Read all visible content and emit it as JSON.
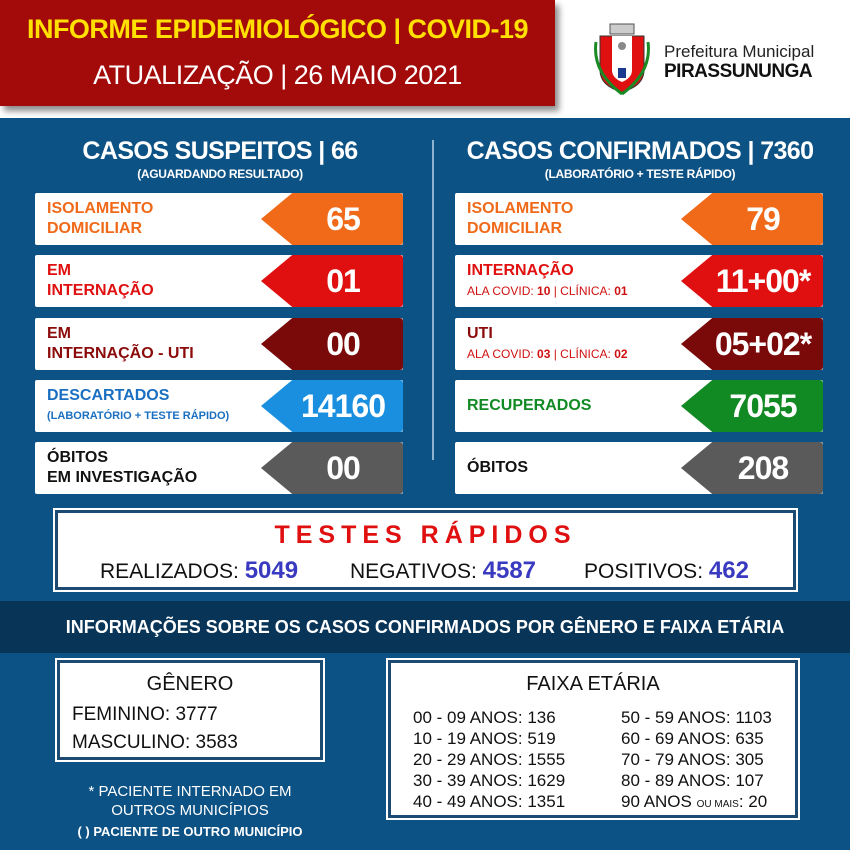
{
  "header": {
    "title": "INFORME  EPIDEMIOLÓGICO | COVID-19",
    "update": "ATUALIZAÇÃO |  26 MAIO 2021",
    "org_line1": "Prefeitura Municipal",
    "org_line2": "PIRASSUNUNGA",
    "logo": "coat-of-arms-icon"
  },
  "suspeitos": {
    "title": "CASOS SUSPEITOS | 66",
    "subtitle": "(AGUARDANDO RESULTADO)",
    "items": [
      {
        "label1": "ISOLAMENTO",
        "label2": "DOMICILIAR",
        "value": "65",
        "color": "#f06a1a",
        "text_color": "#f06a1a"
      },
      {
        "label1": "EM",
        "label2": "INTERNAÇÃO",
        "value": "01",
        "color": "#e01010",
        "text_color": "#e01010"
      },
      {
        "label1": "EM",
        "label2": "INTERNAÇÃO - UTI",
        "value": "00",
        "color": "#7a0a0a",
        "text_color": "#8b0a0a"
      },
      {
        "label1": "DESCARTADOS",
        "label2": "(LABORATÓRIO + TESTE RÁPIDO)",
        "value": "14160",
        "color": "#1a8fe0",
        "text_color": "#1a6fc0"
      },
      {
        "label1": "ÓBITOS",
        "label2": "EM INVESTIGAÇÃO",
        "value": "00",
        "color": "#5a5a5a",
        "text_color": "#111111"
      }
    ]
  },
  "confirmados": {
    "title": "CASOS CONFIRMADOS | 7360",
    "subtitle": "(LABORATÓRIO + TESTE RÁPIDO)",
    "items": [
      {
        "label1": "ISOLAMENTO",
        "label2": "DOMICILIAR",
        "value": "79",
        "color": "#f06a1a",
        "text_color": "#f06a1a"
      },
      {
        "label1": "INTERNAÇÃO",
        "sub_prefix": "ALA COVID: ",
        "sub_a": "10",
        "sub_mid": " | CLÍNICA: ",
        "sub_b": "01",
        "value": "11+00*",
        "color": "#e01010",
        "text_color": "#e01010"
      },
      {
        "label1": "UTI",
        "sub_prefix": "ALA COVID: ",
        "sub_a": "03",
        "sub_mid": " | CLÍNICA: ",
        "sub_b": "02",
        "value": "05+02*",
        "color": "#7a0a0a",
        "text_color": "#8b0a0a"
      },
      {
        "label1": "RECUPERADOS",
        "value": "7055",
        "color": "#128a24",
        "text_color": "#128a24"
      },
      {
        "label1": "ÓBITOS",
        "value": "208",
        "color": "#5a5a5a",
        "text_color": "#111111"
      }
    ]
  },
  "testes": {
    "title": "TESTES RÁPIDOS",
    "realizados_label": "REALIZADOS: ",
    "realizados": "5049",
    "negativos_label": "NEGATIVOS: ",
    "negativos": "4587",
    "positivos_label": "POSITIVOS: ",
    "positivos": "462"
  },
  "band": "INFORMAÇÕES SOBRE OS CASOS CONFIRMADOS POR GÊNERO E FAIXA ETÁRIA",
  "genero": {
    "title": "GÊNERO",
    "feminino": "FEMININO: 3777",
    "masculino": "MASCULINO: 3583"
  },
  "faixa": {
    "title": "FAIXA ETÁRIA",
    "left": [
      "00 - 09 ANOS: 136",
      "10 - 19 ANOS: 519",
      "20 - 29 ANOS: 1555",
      "30 - 39 ANOS: 1629",
      "40 - 49 ANOS: 1351"
    ],
    "right": [
      "50 - 59 ANOS: 1103",
      "60 - 69 ANOS: 635",
      "70 - 79 ANOS: 305",
      "80 - 89 ANOS: 107"
    ],
    "last_a": "90 ANOS ",
    "last_b": "OU MAIS",
    "last_c": ": 20"
  },
  "notes": {
    "n1a": "* PACIENTE INTERNADO EM",
    "n1b": "OUTROS MUNICÍPIOS",
    "n2": "(   ) PACIENTE DE OUTRO MUNICÍPIO"
  }
}
